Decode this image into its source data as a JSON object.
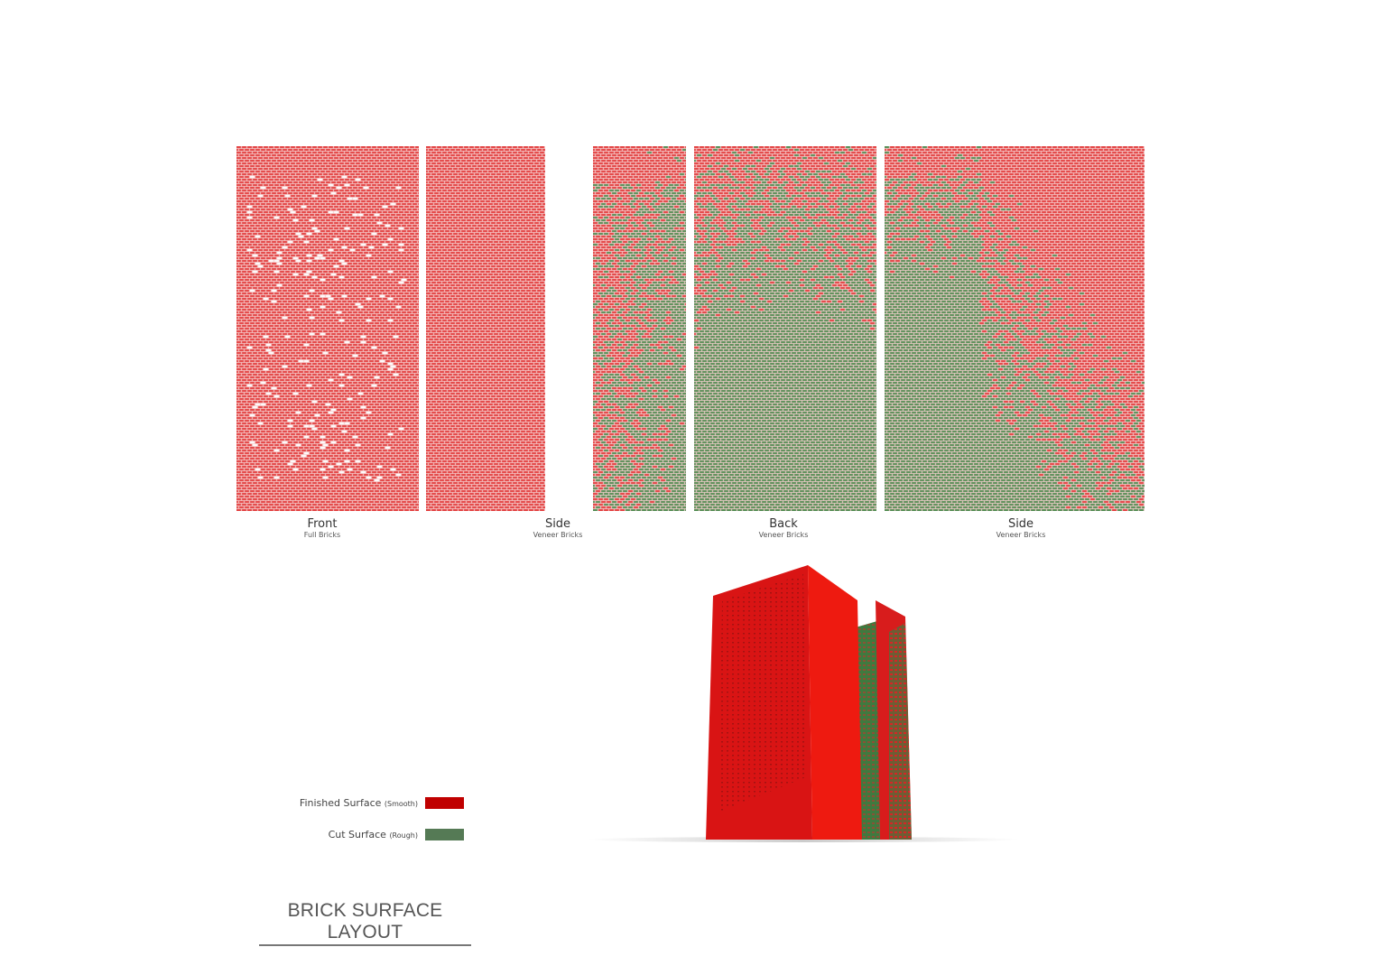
{
  "colors": {
    "finished": "#c00000",
    "cut": "#557a55",
    "brick_red": "#e23a3a",
    "brick_green": "#4e8a4e"
  },
  "panels": [
    {
      "title": "Front",
      "subtitle": "Full Bricks"
    },
    {
      "title": "Side",
      "subtitle": "Veneer Bricks"
    },
    {
      "title": "Back",
      "subtitle": "Veneer Bricks"
    },
    {
      "title": "Side",
      "subtitle": "Veneer Bricks"
    }
  ],
  "legend": [
    {
      "label": "Finished Surface",
      "note": "(Smooth)",
      "color": "#c00000"
    },
    {
      "label": "Cut Surface",
      "note": "(Rough)",
      "color": "#557a55"
    }
  ],
  "title": "BRICK SURFACE LAYOUT"
}
